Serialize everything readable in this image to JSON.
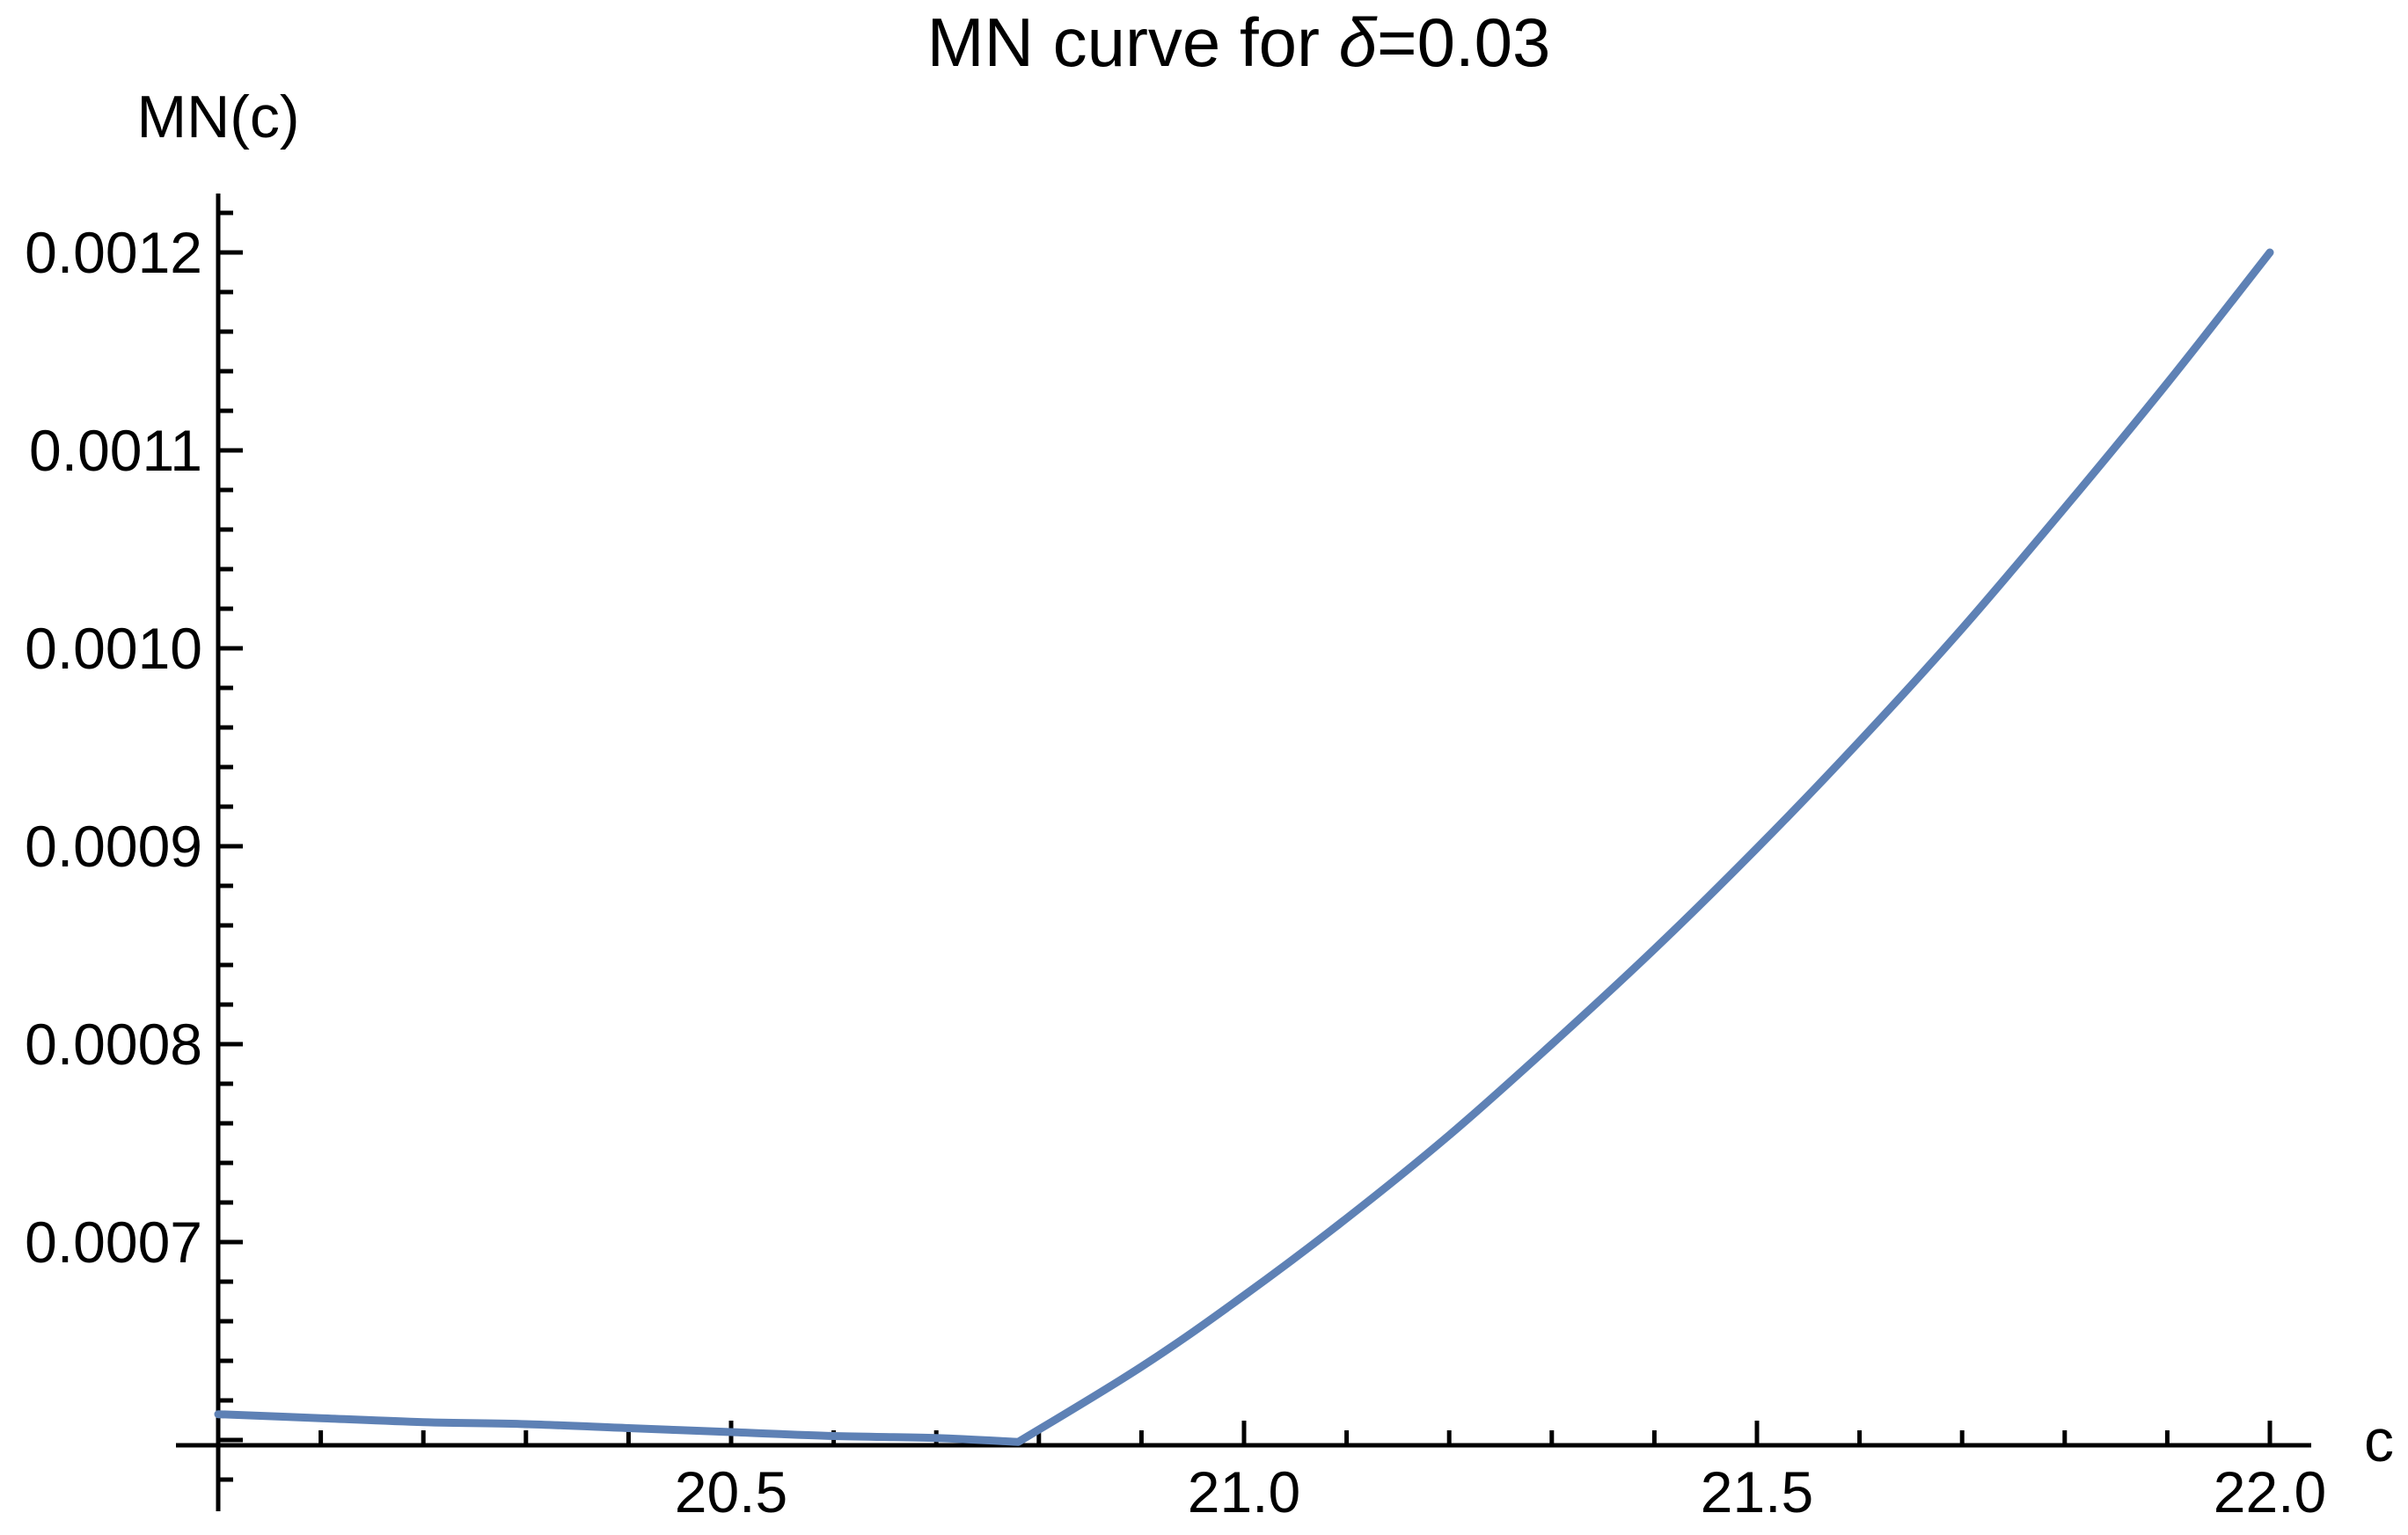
{
  "colors": {
    "curve": "#5E81B5",
    "axis": "#000000",
    "text": "#000000",
    "background": "#FFFFFF"
  },
  "chart_data": {
    "type": "line",
    "title": "MN curve for δ=0.03",
    "title_parts": {
      "prefix": "MN curve for ",
      "delta": "δ",
      "suffix": "=0.03"
    },
    "xlabel": "c",
    "ylabel": "MN(c)",
    "xlim": [
      20.0,
      22.04
    ],
    "ylim": [
      0.000597,
      0.00122
    ],
    "axes_cross": [
      20.0,
      0.000597
    ],
    "grid": false,
    "legend": null,
    "x_ticks": {
      "major": [
        {
          "value": 20.5,
          "label": "20.5"
        },
        {
          "value": 21.0,
          "label": "21.0"
        },
        {
          "value": 21.5,
          "label": "21.5"
        },
        {
          "value": 22.0,
          "label": "22.0"
        }
      ],
      "minor": [
        20.1,
        20.2,
        20.3,
        20.4,
        20.6,
        20.7,
        20.8,
        20.9,
        21.1,
        21.2,
        21.3,
        21.4,
        21.6,
        21.7,
        21.8,
        21.9
      ],
      "minor_step": 0.1
    },
    "y_ticks": {
      "major": [
        {
          "value": 0.0006,
          "label": ""
        },
        {
          "value": 0.0007,
          "label": "0.0007"
        },
        {
          "value": 0.0008,
          "label": "0.0008"
        },
        {
          "value": 0.0009,
          "label": "0.0009"
        },
        {
          "value": 0.001,
          "label": "0.0010"
        },
        {
          "value": 0.0011,
          "label": "0.0011"
        },
        {
          "value": 0.0012,
          "label": "0.0012"
        }
      ],
      "minor": [
        0.00058,
        0.00062,
        0.00064,
        0.00066,
        0.00068,
        0.00072,
        0.00074,
        0.00076,
        0.00078,
        0.00082,
        0.00084,
        0.00086,
        0.00088,
        0.00092,
        0.00094,
        0.00096,
        0.00098,
        0.00102,
        0.00104,
        0.00106,
        0.00108,
        0.00112,
        0.00114,
        0.00116,
        0.00118,
        0.00122
      ],
      "minor_step": 2e-05
    },
    "min_point": [
      20.78,
      0.000599
    ],
    "series": [
      {
        "name": "MN",
        "color": "#5E81B5",
        "points": [
          [
            20.0,
            0.000613
          ],
          [
            20.1,
            0.000611
          ],
          [
            20.2,
            0.000609
          ],
          [
            20.3,
            0.000608
          ],
          [
            20.4,
            0.000606
          ],
          [
            20.5,
            0.000604
          ],
          [
            20.6,
            0.000602
          ],
          [
            20.7,
            0.000601
          ],
          [
            20.78,
            0.000599
          ],
          [
            20.9,
            0.000637
          ],
          [
            21.0,
            0.000673
          ],
          [
            21.1,
            0.000712
          ],
          [
            21.2,
            0.000754
          ],
          [
            21.3,
            0.0008
          ],
          [
            21.4,
            0.000848
          ],
          [
            21.5,
            0.000899
          ],
          [
            21.6,
            0.000953
          ],
          [
            21.7,
            0.00101
          ],
          [
            21.8,
            0.001071
          ],
          [
            21.9,
            0.001134
          ],
          [
            22.0,
            0.0012
          ]
        ]
      }
    ]
  }
}
